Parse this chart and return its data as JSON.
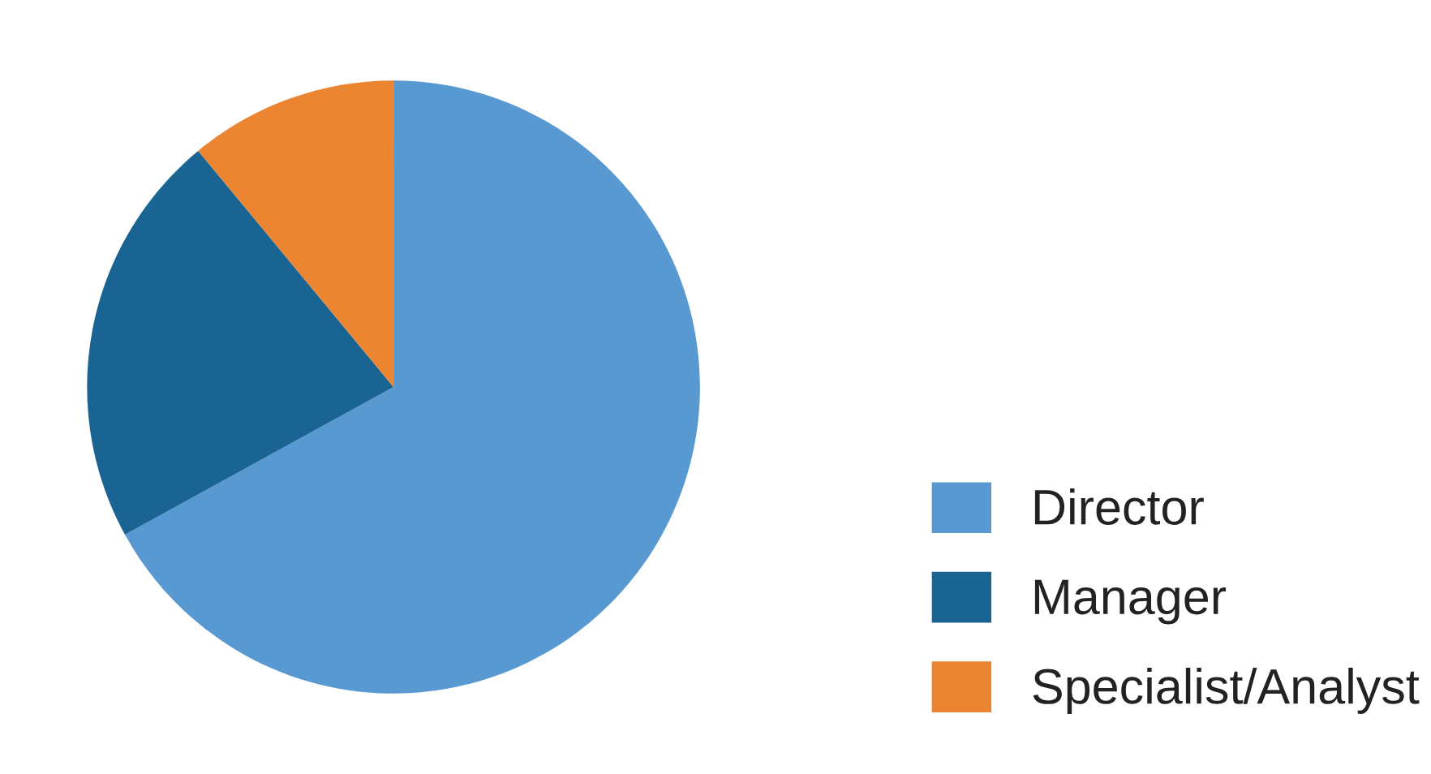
{
  "chart_data": {
    "type": "pie",
    "categories": [
      "Director",
      "Manager",
      "Specialist/Analyst"
    ],
    "values": [
      67,
      22,
      11
    ],
    "colors": [
      "#5899d2",
      "#1a6493",
      "#ec8532"
    ],
    "legend": "bottom right"
  }
}
